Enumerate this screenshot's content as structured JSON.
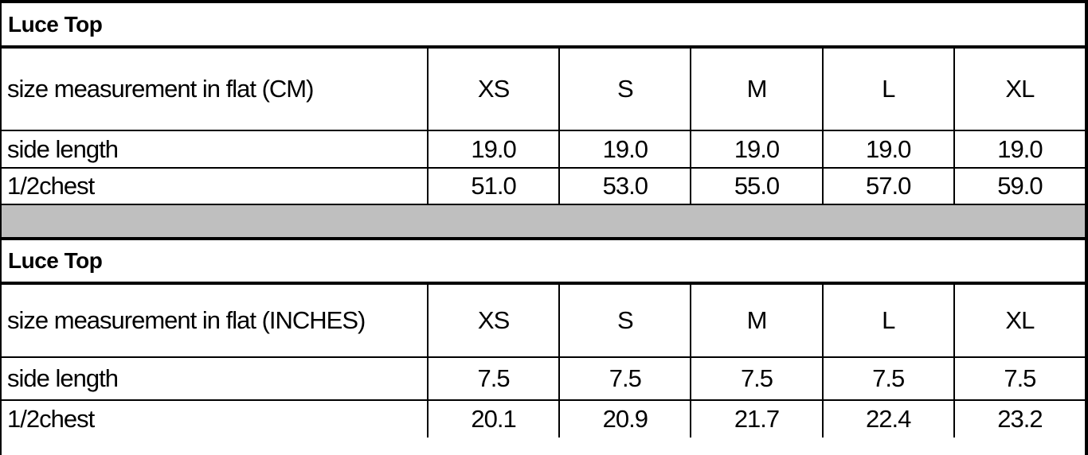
{
  "colors": {
    "border": "#000000",
    "separator": "#bfbfbf",
    "text": "#000000",
    "bg": "#ffffff"
  },
  "tables": [
    {
      "title": "Luce Top",
      "unit_label": "size measurement in flat (CM)",
      "sizes": [
        "XS",
        "S",
        "M",
        "L",
        "XL"
      ],
      "rows": [
        {
          "label": "side length",
          "values": [
            "19.0",
            "19.0",
            "19.0",
            "19.0",
            "19.0"
          ]
        },
        {
          "label": "1/2chest",
          "values": [
            "51.0",
            "53.0",
            "55.0",
            "57.0",
            "59.0"
          ]
        }
      ]
    },
    {
      "title": "Luce Top",
      "unit_label": "size measurement in flat (INCHES)",
      "sizes": [
        "XS",
        "S",
        "M",
        "L",
        "XL"
      ],
      "rows": [
        {
          "label": "side length",
          "values": [
            "7.5",
            "7.5",
            "7.5",
            "7.5",
            "7.5"
          ]
        },
        {
          "label": "1/2chest",
          "values": [
            "20.1",
            "20.9",
            "21.7",
            "22.4",
            "23.2"
          ]
        }
      ]
    }
  ]
}
